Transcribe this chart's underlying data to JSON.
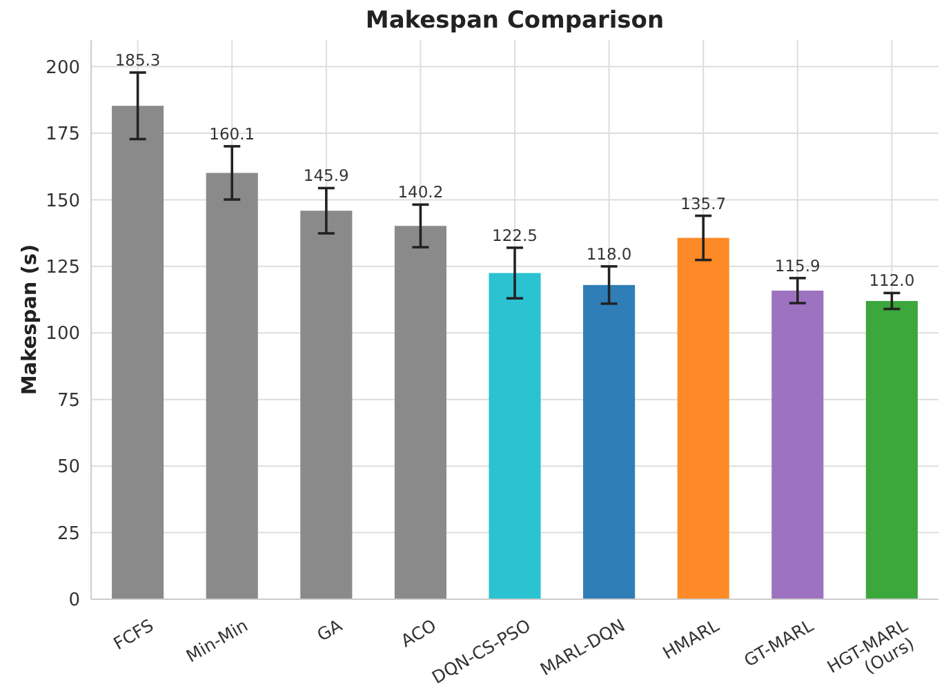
{
  "chart_data": {
    "type": "bar",
    "title": "Makespan Comparison",
    "ylabel": "Makespan (s)",
    "categories": [
      "FCFS",
      "Min-Min",
      "GA",
      "ACO",
      "DQN-CS-PSO",
      "MARL-DQN",
      "HMARL",
      "GT-MARL",
      "HGT-MARL\n(Ours)"
    ],
    "values": [
      185.3,
      160.1,
      145.9,
      140.2,
      122.5,
      118.0,
      135.7,
      115.9,
      112.0
    ],
    "errors": [
      12.5,
      10,
      8.5,
      8,
      9.5,
      7,
      8.3,
      4.7,
      3
    ],
    "colors": [
      "#8a8a8a",
      "#8a8a8a",
      "#8a8a8a",
      "#8a8a8a",
      "#2bc2d2",
      "#2f7eb8",
      "#fd8a26",
      "#9d72c0",
      "#3ca73c"
    ],
    "value_labels": [
      "185.3",
      "160.1",
      "145.9",
      "140.2",
      "122.5",
      "118.0",
      "135.7",
      "115.9",
      "112.0"
    ],
    "ylim": [
      0,
      210
    ],
    "yticks": [
      0,
      25,
      50,
      75,
      100,
      125,
      150,
      175,
      200
    ],
    "grid": true
  }
}
